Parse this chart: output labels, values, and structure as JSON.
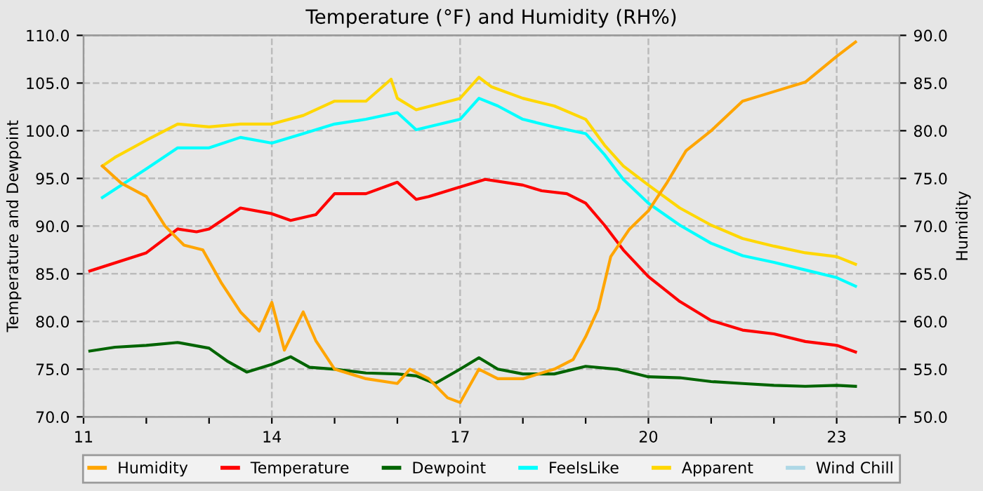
{
  "chart_data": {
    "type": "line",
    "title": "Temperature (°F) and Humidity (RH%)",
    "ylabel": "Temperature and Dewpoint",
    "y2label": "Humidity",
    "xlim": [
      11,
      24
    ],
    "xticks": [
      11,
      {
        "value": 12,
        "label": null
      },
      {
        "value": 13,
        "label": null
      },
      14,
      {
        "value": 15,
        "label": null
      },
      {
        "value": 16,
        "label": null
      },
      17,
      {
        "value": 18,
        "label": null
      },
      {
        "value": 19,
        "label": null
      },
      20,
      {
        "value": 21,
        "label": null
      },
      {
        "value": 22,
        "label": null
      },
      23,
      {
        "value": 24,
        "label": null
      }
    ],
    "ylim": [
      70,
      110
    ],
    "yticks": [
      {
        "value": 70,
        "label": "70.0"
      },
      {
        "value": 75,
        "label": "75.0"
      },
      {
        "value": 80,
        "label": "80.0"
      },
      {
        "value": 85,
        "label": "85.0"
      },
      {
        "value": 90,
        "label": "90.0"
      },
      {
        "value": 95,
        "label": "95.0"
      },
      {
        "value": 100,
        "label": "100.0"
      },
      {
        "value": 105,
        "label": "105.0"
      },
      {
        "value": 110,
        "label": "110.0"
      }
    ],
    "y2lim": [
      50,
      90
    ],
    "y2ticks": [
      {
        "value": 50,
        "label": "50.0"
      },
      {
        "value": 55,
        "label": "55.0"
      },
      {
        "value": 60,
        "label": "60.0"
      },
      {
        "value": 65,
        "label": "65.0"
      },
      {
        "value": 70,
        "label": "70.0"
      },
      {
        "value": 75,
        "label": "75.0"
      },
      {
        "value": 80,
        "label": "80.0"
      },
      {
        "value": 85,
        "label": "85.0"
      },
      {
        "value": 90,
        "label": "90.0"
      }
    ],
    "grid": true,
    "legend": "bottom",
    "line_style": "solid",
    "marker": "none",
    "series": [
      {
        "name": "Humidity",
        "color": "#ffa500",
        "axis": "y2",
        "x": [
          11.3,
          11.6,
          12,
          12.3,
          12.6,
          12.9,
          13.2,
          13.5,
          13.8,
          14,
          14.2,
          14.5,
          14.7,
          15,
          15.5,
          16,
          16.2,
          16.5,
          16.8,
          17,
          17.3,
          17.6,
          18,
          18.5,
          18.8,
          19,
          19.2,
          19.4,
          19.7,
          20,
          20.3,
          20.6,
          21,
          21.5,
          22,
          22.5,
          23,
          23.3
        ],
        "values": [
          76.3,
          74.5,
          73.1,
          70,
          68,
          67.5,
          64,
          61,
          59,
          62,
          57,
          61,
          58,
          55,
          54,
          53.5,
          55,
          54,
          52,
          51.5,
          55,
          54,
          54,
          55,
          56,
          58.4,
          61.3,
          66.8,
          69.7,
          71.6,
          74.6,
          77.9,
          80,
          83.1,
          84.1,
          85.1,
          87.8,
          89.3
        ]
      },
      {
        "name": "Temperature",
        "color": "#ff0000",
        "x": [
          11.1,
          12,
          12.5,
          12.8,
          13,
          13.5,
          14,
          14.3,
          14.7,
          15,
          15.5,
          16,
          16.3,
          16.5,
          17,
          17.4,
          18,
          18.3,
          18.7,
          19,
          19.3,
          19.6,
          20,
          20.5,
          21,
          21.5,
          22,
          22.5,
          23,
          23.3
        ],
        "values": [
          85.3,
          87.2,
          89.7,
          89.4,
          89.7,
          91.9,
          91.3,
          90.6,
          91.2,
          93.4,
          93.4,
          94.6,
          92.8,
          93.1,
          94.1,
          94.9,
          94.3,
          93.7,
          93.4,
          92.4,
          90.1,
          87.5,
          84.7,
          82.1,
          80.1,
          79.1,
          78.7,
          77.9,
          77.5,
          76.8
        ]
      },
      {
        "name": "Dewpoint",
        "color": "#006400",
        "x": [
          11.1,
          11.5,
          12,
          12.5,
          13,
          13.3,
          13.6,
          14,
          14.3,
          14.6,
          15,
          15.5,
          16,
          16.3,
          16.6,
          17,
          17.3,
          17.6,
          18,
          18.5,
          19,
          19.5,
          20,
          20.5,
          21,
          21.5,
          22,
          22.5,
          23,
          23.3
        ],
        "values": [
          76.9,
          77.3,
          77.5,
          77.8,
          77.2,
          75.8,
          74.7,
          75.5,
          76.3,
          75.2,
          75,
          74.6,
          74.5,
          74.3,
          73.5,
          75,
          76.2,
          75,
          74.5,
          74.5,
          75.3,
          75,
          74.2,
          74.1,
          73.7,
          73.5,
          73.3,
          73.2,
          73.3,
          73.2
        ]
      },
      {
        "name": "FeelsLike",
        "color": "#00ffff",
        "x": [
          11.3,
          12,
          12.5,
          13,
          13.5,
          14,
          14.5,
          15,
          15.5,
          16,
          16.3,
          17,
          17.3,
          17.6,
          18,
          18.5,
          19,
          19.3,
          19.6,
          20,
          20.5,
          21,
          21.5,
          22,
          22.5,
          23,
          23.3
        ],
        "values": [
          93.0,
          96.0,
          98.2,
          98.2,
          99.3,
          98.7,
          99.7,
          100.7,
          101.2,
          101.9,
          100.1,
          101.2,
          103.4,
          102.6,
          101.2,
          100.4,
          99.7,
          97.5,
          94.9,
          92.4,
          90.1,
          88.2,
          86.9,
          86.2,
          85.4,
          84.6,
          83.7
        ]
      },
      {
        "name": "Apparent",
        "color": "#ffd700",
        "x": [
          11.3,
          11.5,
          12,
          12.5,
          13,
          13.5,
          14,
          14.5,
          15,
          15.5,
          15.9,
          16,
          16.3,
          17,
          17.3,
          17.5,
          18,
          18.5,
          19,
          19.3,
          19.6,
          20,
          20.5,
          21,
          21.5,
          22,
          22.5,
          23,
          23.3
        ],
        "values": [
          96.3,
          97.2,
          99.0,
          100.7,
          100.4,
          100.7,
          100.7,
          101.6,
          103.1,
          103.1,
          105.4,
          103.4,
          102.2,
          103.4,
          105.6,
          104.6,
          103.4,
          102.6,
          101.2,
          98.5,
          96.3,
          94.3,
          91.9,
          90.1,
          88.7,
          87.9,
          87.2,
          86.8,
          86.0
        ]
      },
      {
        "name": "Wind Chill",
        "color": "#add8e6"
      }
    ]
  }
}
